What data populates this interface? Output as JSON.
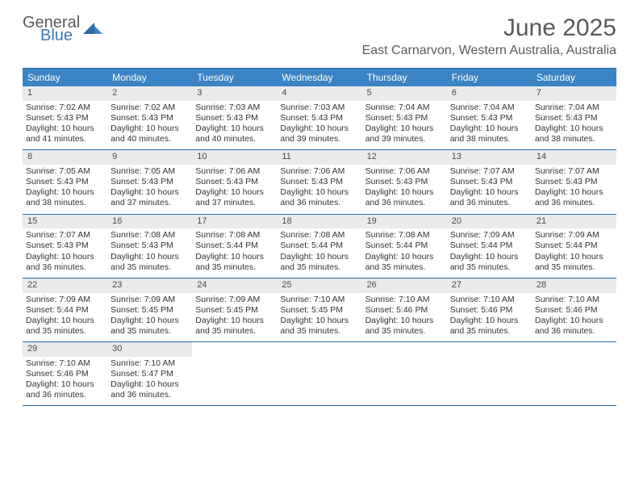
{
  "logo": {
    "general": "General",
    "blue": "Blue"
  },
  "title": "June 2025",
  "location": "East Carnarvon, Western Australia, Australia",
  "colors": {
    "header_bg": "#3a83c4",
    "header_text": "#ffffff",
    "daynum_bg": "#e8eaec",
    "border": "#2b6aa3",
    "body_text": "#333333",
    "title_text": "#5a5a5a",
    "logo_gray": "#5a5a5a",
    "logo_blue": "#3a7ab8"
  },
  "weekdays": [
    "Sunday",
    "Monday",
    "Tuesday",
    "Wednesday",
    "Thursday",
    "Friday",
    "Saturday"
  ],
  "weeks": [
    [
      {
        "n": "1",
        "sr": "Sunrise: 7:02 AM",
        "ss": "Sunset: 5:43 PM",
        "dl": "Daylight: 10 hours and 41 minutes."
      },
      {
        "n": "2",
        "sr": "Sunrise: 7:02 AM",
        "ss": "Sunset: 5:43 PM",
        "dl": "Daylight: 10 hours and 40 minutes."
      },
      {
        "n": "3",
        "sr": "Sunrise: 7:03 AM",
        "ss": "Sunset: 5:43 PM",
        "dl": "Daylight: 10 hours and 40 minutes."
      },
      {
        "n": "4",
        "sr": "Sunrise: 7:03 AM",
        "ss": "Sunset: 5:43 PM",
        "dl": "Daylight: 10 hours and 39 minutes."
      },
      {
        "n": "5",
        "sr": "Sunrise: 7:04 AM",
        "ss": "Sunset: 5:43 PM",
        "dl": "Daylight: 10 hours and 39 minutes."
      },
      {
        "n": "6",
        "sr": "Sunrise: 7:04 AM",
        "ss": "Sunset: 5:43 PM",
        "dl": "Daylight: 10 hours and 38 minutes."
      },
      {
        "n": "7",
        "sr": "Sunrise: 7:04 AM",
        "ss": "Sunset: 5:43 PM",
        "dl": "Daylight: 10 hours and 38 minutes."
      }
    ],
    [
      {
        "n": "8",
        "sr": "Sunrise: 7:05 AM",
        "ss": "Sunset: 5:43 PM",
        "dl": "Daylight: 10 hours and 38 minutes."
      },
      {
        "n": "9",
        "sr": "Sunrise: 7:05 AM",
        "ss": "Sunset: 5:43 PM",
        "dl": "Daylight: 10 hours and 37 minutes."
      },
      {
        "n": "10",
        "sr": "Sunrise: 7:06 AM",
        "ss": "Sunset: 5:43 PM",
        "dl": "Daylight: 10 hours and 37 minutes."
      },
      {
        "n": "11",
        "sr": "Sunrise: 7:06 AM",
        "ss": "Sunset: 5:43 PM",
        "dl": "Daylight: 10 hours and 36 minutes."
      },
      {
        "n": "12",
        "sr": "Sunrise: 7:06 AM",
        "ss": "Sunset: 5:43 PM",
        "dl": "Daylight: 10 hours and 36 minutes."
      },
      {
        "n": "13",
        "sr": "Sunrise: 7:07 AM",
        "ss": "Sunset: 5:43 PM",
        "dl": "Daylight: 10 hours and 36 minutes."
      },
      {
        "n": "14",
        "sr": "Sunrise: 7:07 AM",
        "ss": "Sunset: 5:43 PM",
        "dl": "Daylight: 10 hours and 36 minutes."
      }
    ],
    [
      {
        "n": "15",
        "sr": "Sunrise: 7:07 AM",
        "ss": "Sunset: 5:43 PM",
        "dl": "Daylight: 10 hours and 36 minutes."
      },
      {
        "n": "16",
        "sr": "Sunrise: 7:08 AM",
        "ss": "Sunset: 5:43 PM",
        "dl": "Daylight: 10 hours and 35 minutes."
      },
      {
        "n": "17",
        "sr": "Sunrise: 7:08 AM",
        "ss": "Sunset: 5:44 PM",
        "dl": "Daylight: 10 hours and 35 minutes."
      },
      {
        "n": "18",
        "sr": "Sunrise: 7:08 AM",
        "ss": "Sunset: 5:44 PM",
        "dl": "Daylight: 10 hours and 35 minutes."
      },
      {
        "n": "19",
        "sr": "Sunrise: 7:08 AM",
        "ss": "Sunset: 5:44 PM",
        "dl": "Daylight: 10 hours and 35 minutes."
      },
      {
        "n": "20",
        "sr": "Sunrise: 7:09 AM",
        "ss": "Sunset: 5:44 PM",
        "dl": "Daylight: 10 hours and 35 minutes."
      },
      {
        "n": "21",
        "sr": "Sunrise: 7:09 AM",
        "ss": "Sunset: 5:44 PM",
        "dl": "Daylight: 10 hours and 35 minutes."
      }
    ],
    [
      {
        "n": "22",
        "sr": "Sunrise: 7:09 AM",
        "ss": "Sunset: 5:44 PM",
        "dl": "Daylight: 10 hours and 35 minutes."
      },
      {
        "n": "23",
        "sr": "Sunrise: 7:09 AM",
        "ss": "Sunset: 5:45 PM",
        "dl": "Daylight: 10 hours and 35 minutes."
      },
      {
        "n": "24",
        "sr": "Sunrise: 7:09 AM",
        "ss": "Sunset: 5:45 PM",
        "dl": "Daylight: 10 hours and 35 minutes."
      },
      {
        "n": "25",
        "sr": "Sunrise: 7:10 AM",
        "ss": "Sunset: 5:45 PM",
        "dl": "Daylight: 10 hours and 35 minutes."
      },
      {
        "n": "26",
        "sr": "Sunrise: 7:10 AM",
        "ss": "Sunset: 5:46 PM",
        "dl": "Daylight: 10 hours and 35 minutes."
      },
      {
        "n": "27",
        "sr": "Sunrise: 7:10 AM",
        "ss": "Sunset: 5:46 PM",
        "dl": "Daylight: 10 hours and 35 minutes."
      },
      {
        "n": "28",
        "sr": "Sunrise: 7:10 AM",
        "ss": "Sunset: 5:46 PM",
        "dl": "Daylight: 10 hours and 36 minutes."
      }
    ],
    [
      {
        "n": "29",
        "sr": "Sunrise: 7:10 AM",
        "ss": "Sunset: 5:46 PM",
        "dl": "Daylight: 10 hours and 36 minutes."
      },
      {
        "n": "30",
        "sr": "Sunrise: 7:10 AM",
        "ss": "Sunset: 5:47 PM",
        "dl": "Daylight: 10 hours and 36 minutes."
      },
      {
        "empty": true
      },
      {
        "empty": true
      },
      {
        "empty": true
      },
      {
        "empty": true
      },
      {
        "empty": true
      }
    ]
  ]
}
